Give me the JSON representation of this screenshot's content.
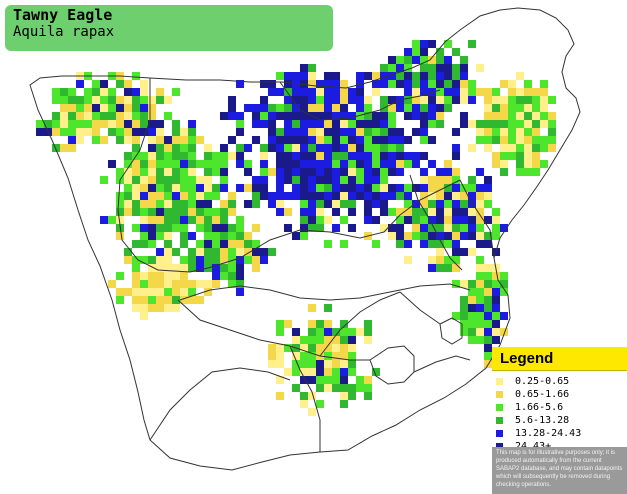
{
  "title": {
    "common_name": "Tawny Eagle",
    "latin_name": "Aquila rapax"
  },
  "legend": {
    "heading": "Legend",
    "items": [
      {
        "label": "0.25-0.65",
        "color": "#fff08c"
      },
      {
        "label": "0.65-1.66",
        "color": "#f4d84a"
      },
      {
        "label": "1.66-5.6",
        "color": "#4ee62c"
      },
      {
        "label": "5.6-13.28",
        "color": "#30b830"
      },
      {
        "label": "13.28-24.43",
        "color": "#1c1ce0"
      },
      {
        "label": "24.43+",
        "color": "#1a1a8a"
      }
    ],
    "disclaimer": "This map is for illustrative purposes only; it is produced automatically from the current SABAP2 database, and may contain datapoints which will subsequently be removed during checking operations."
  },
  "colors": {
    "title_bg": "#6ecf6e",
    "legend_header": "#ffe800",
    "disclaimer_bg": "#9a9a9a",
    "border": "#333333"
  }
}
